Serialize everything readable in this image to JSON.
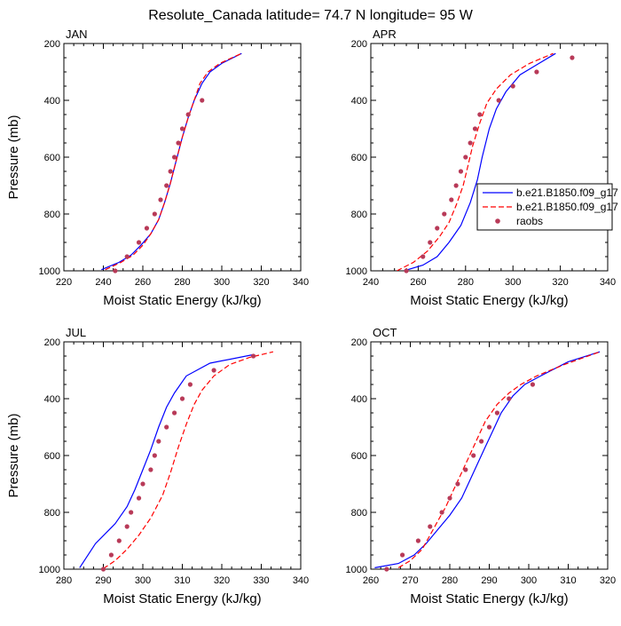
{
  "title": "Resolute_Canada  latitude= 74.7 N longitude= 95 W",
  "colors": {
    "model1": "#0000ff",
    "model2": "#ff0000",
    "obs": "#b83a58"
  },
  "legend": {
    "panel": 1,
    "entries": [
      {
        "label": "b.e21.B1850.f09_g17",
        "style": "solid-line",
        "color": "#0000ff"
      },
      {
        "label": "b.e21.B1850.f09_g17",
        "style": "dashed-line",
        "color": "#ff0000"
      },
      {
        "label": "raobs",
        "style": "marker",
        "color": "#b83a58"
      }
    ]
  },
  "chart_data": [
    {
      "type": "line",
      "panel_label": "JAN",
      "xlabel": "Moist Static Energy (kJ/kg)",
      "ylabel": "Pressure (mb)",
      "xlim": [
        220,
        340
      ],
      "xticks": [
        220,
        240,
        260,
        280,
        300,
        320,
        340
      ],
      "ylim": [
        1000,
        200
      ],
      "yticks": [
        200,
        400,
        600,
        800,
        1000
      ],
      "series": [
        {
          "style": "solid",
          "color": "#0000ff",
          "points": [
            [
              239,
              996
            ],
            [
              248,
              970
            ],
            [
              254,
              945
            ],
            [
              259,
              910
            ],
            [
              264,
              870
            ],
            [
              268,
              820
            ],
            [
              271,
              760
            ],
            [
              274,
              690
            ],
            [
              277,
              610
            ],
            [
              280,
              530
            ],
            [
              283,
              460
            ],
            [
              286,
              400
            ],
            [
              290,
              340
            ],
            [
              294,
              300
            ],
            [
              300,
              270
            ],
            [
              310,
              235
            ]
          ]
        },
        {
          "style": "dashed",
          "color": "#ff0000",
          "points": [
            [
              241,
              996
            ],
            [
              249,
              970
            ],
            [
              255,
              945
            ],
            [
              260,
              910
            ],
            [
              264,
              870
            ],
            [
              268,
              820
            ],
            [
              271,
              760
            ],
            [
              274,
              690
            ],
            [
              277,
              610
            ],
            [
              280,
              530
            ],
            [
              283,
              460
            ],
            [
              286,
              400
            ],
            [
              289,
              340
            ],
            [
              293,
              300
            ],
            [
              299,
              270
            ],
            [
              310,
              235
            ]
          ]
        },
        {
          "style": "markers",
          "color": "#b83a58",
          "points": [
            [
              246,
              1000
            ],
            [
              252,
              950
            ],
            [
              258,
              900
            ],
            [
              262,
              850
            ],
            [
              266,
              800
            ],
            [
              269,
              750
            ],
            [
              272,
              700
            ],
            [
              274,
              650
            ],
            [
              276,
              600
            ],
            [
              278,
              550
            ],
            [
              280,
              500
            ],
            [
              283,
              450
            ],
            [
              290,
              400
            ]
          ]
        }
      ]
    },
    {
      "type": "line",
      "panel_label": "APR",
      "xlabel": "Moist Static Energy (kJ/kg)",
      "ylabel": "",
      "xlim": [
        240,
        340
      ],
      "xticks": [
        240,
        260,
        280,
        300,
        320,
        340
      ],
      "ylim": [
        1000,
        200
      ],
      "yticks": [
        200,
        400,
        600,
        800,
        1000
      ],
      "series": [
        {
          "style": "solid",
          "color": "#0000ff",
          "points": [
            [
              254,
              1000
            ],
            [
              262,
              980
            ],
            [
              268,
              950
            ],
            [
              273,
              900
            ],
            [
              278,
              840
            ],
            [
              282,
              760
            ],
            [
              285,
              680
            ],
            [
              287,
              600
            ],
            [
              290,
              500
            ],
            [
              293,
              430
            ],
            [
              297,
              370
            ],
            [
              303,
              310
            ],
            [
              311,
              270
            ],
            [
              318,
              235
            ]
          ]
        },
        {
          "style": "dashed",
          "color": "#ff0000",
          "points": [
            [
              251,
              1000
            ],
            [
              258,
              970
            ],
            [
              264,
              930
            ],
            [
              269,
              880
            ],
            [
              273,
              830
            ],
            [
              276,
              770
            ],
            [
              279,
              700
            ],
            [
              281,
              630
            ],
            [
              283,
              560
            ],
            [
              286,
              480
            ],
            [
              289,
              410
            ],
            [
              293,
              360
            ],
            [
              299,
              310
            ],
            [
              307,
              270
            ],
            [
              317,
              235
            ]
          ]
        },
        {
          "style": "markers",
          "color": "#b83a58",
          "points": [
            [
              255,
              1000
            ],
            [
              262,
              950
            ],
            [
              265,
              900
            ],
            [
              268,
              850
            ],
            [
              271,
              800
            ],
            [
              274,
              750
            ],
            [
              276,
              700
            ],
            [
              278,
              650
            ],
            [
              280,
              600
            ],
            [
              282,
              550
            ],
            [
              284,
              500
            ],
            [
              286,
              450
            ],
            [
              294,
              400
            ],
            [
              300,
              350
            ],
            [
              310,
              300
            ],
            [
              325,
              250
            ]
          ]
        }
      ]
    },
    {
      "type": "line",
      "panel_label": "JUL",
      "xlabel": "Moist Static Energy (kJ/kg)",
      "ylabel": "Pressure (mb)",
      "xlim": [
        280,
        340
      ],
      "xticks": [
        280,
        290,
        300,
        310,
        320,
        330,
        340
      ],
      "ylim": [
        1000,
        200
      ],
      "yticks": [
        200,
        400,
        600,
        800,
        1000
      ],
      "series": [
        {
          "style": "solid",
          "color": "#0000ff",
          "points": [
            [
              284,
              995
            ],
            [
              288,
              910
            ],
            [
              293,
              840
            ],
            [
              296,
              780
            ],
            [
              298,
              720
            ],
            [
              300,
              650
            ],
            [
              302,
              580
            ],
            [
              304,
              500
            ],
            [
              306,
              430
            ],
            [
              308,
              380
            ],
            [
              311,
              320
            ],
            [
              317,
              275
            ],
            [
              328,
              245
            ]
          ]
        },
        {
          "style": "dashed",
          "color": "#ff0000",
          "points": [
            [
              290,
              998
            ],
            [
              293,
              970
            ],
            [
              296,
              930
            ],
            [
              299,
              880
            ],
            [
              302,
              820
            ],
            [
              305,
              740
            ],
            [
              307,
              660
            ],
            [
              309,
              570
            ],
            [
              311,
              490
            ],
            [
              313,
              420
            ],
            [
              315,
              370
            ],
            [
              318,
              320
            ],
            [
              322,
              280
            ],
            [
              327,
              255
            ],
            [
              333,
              235
            ]
          ]
        },
        {
          "style": "markers",
          "color": "#b83a58",
          "points": [
            [
              290,
              1000
            ],
            [
              292,
              950
            ],
            [
              294,
              900
            ],
            [
              296,
              850
            ],
            [
              297,
              800
            ],
            [
              299,
              750
            ],
            [
              300,
              700
            ],
            [
              302,
              650
            ],
            [
              303,
              600
            ],
            [
              304,
              550
            ],
            [
              306,
              500
            ],
            [
              308,
              450
            ],
            [
              310,
              400
            ],
            [
              312,
              350
            ],
            [
              318,
              300
            ],
            [
              328,
              250
            ]
          ]
        }
      ]
    },
    {
      "type": "line",
      "panel_label": "OCT",
      "xlabel": "Moist Static Energy (kJ/kg)",
      "ylabel": "",
      "xlim": [
        260,
        320
      ],
      "xticks": [
        260,
        270,
        280,
        290,
        300,
        310,
        320
      ],
      "ylim": [
        1000,
        200
      ],
      "yticks": [
        200,
        400,
        600,
        800,
        1000
      ],
      "series": [
        {
          "style": "solid",
          "color": "#0000ff",
          "points": [
            [
              261,
              995
            ],
            [
              267,
              980
            ],
            [
              271,
              950
            ],
            [
              274,
              910
            ],
            [
              277,
              860
            ],
            [
              280,
              810
            ],
            [
              283,
              750
            ],
            [
              285,
              690
            ],
            [
              287,
              630
            ],
            [
              289,
              570
            ],
            [
              291,
              510
            ],
            [
              293,
              450
            ],
            [
              296,
              390
            ],
            [
              299,
              350
            ],
            [
              303,
              320
            ],
            [
              310,
              270
            ],
            [
              318,
              235
            ]
          ]
        },
        {
          "style": "dashed",
          "color": "#ff0000",
          "points": [
            [
              267,
              995
            ],
            [
              270,
              970
            ],
            [
              273,
              930
            ],
            [
              275,
              880
            ],
            [
              277,
              830
            ],
            [
              279,
              780
            ],
            [
              281,
              720
            ],
            [
              283,
              660
            ],
            [
              285,
              600
            ],
            [
              287,
              540
            ],
            [
              289,
              480
            ],
            [
              292,
              420
            ],
            [
              295,
              380
            ],
            [
              298,
              350
            ],
            [
              302,
              320
            ],
            [
              309,
              280
            ],
            [
              318,
              235
            ]
          ]
        },
        {
          "style": "markers",
          "color": "#b83a58",
          "points": [
            [
              264,
              1000
            ],
            [
              268,
              950
            ],
            [
              272,
              900
            ],
            [
              275,
              850
            ],
            [
              278,
              800
            ],
            [
              280,
              750
            ],
            [
              282,
              700
            ],
            [
              284,
              650
            ],
            [
              286,
              600
            ],
            [
              288,
              550
            ],
            [
              290,
              500
            ],
            [
              292,
              450
            ],
            [
              295,
              400
            ],
            [
              301,
              350
            ]
          ]
        }
      ]
    }
  ]
}
